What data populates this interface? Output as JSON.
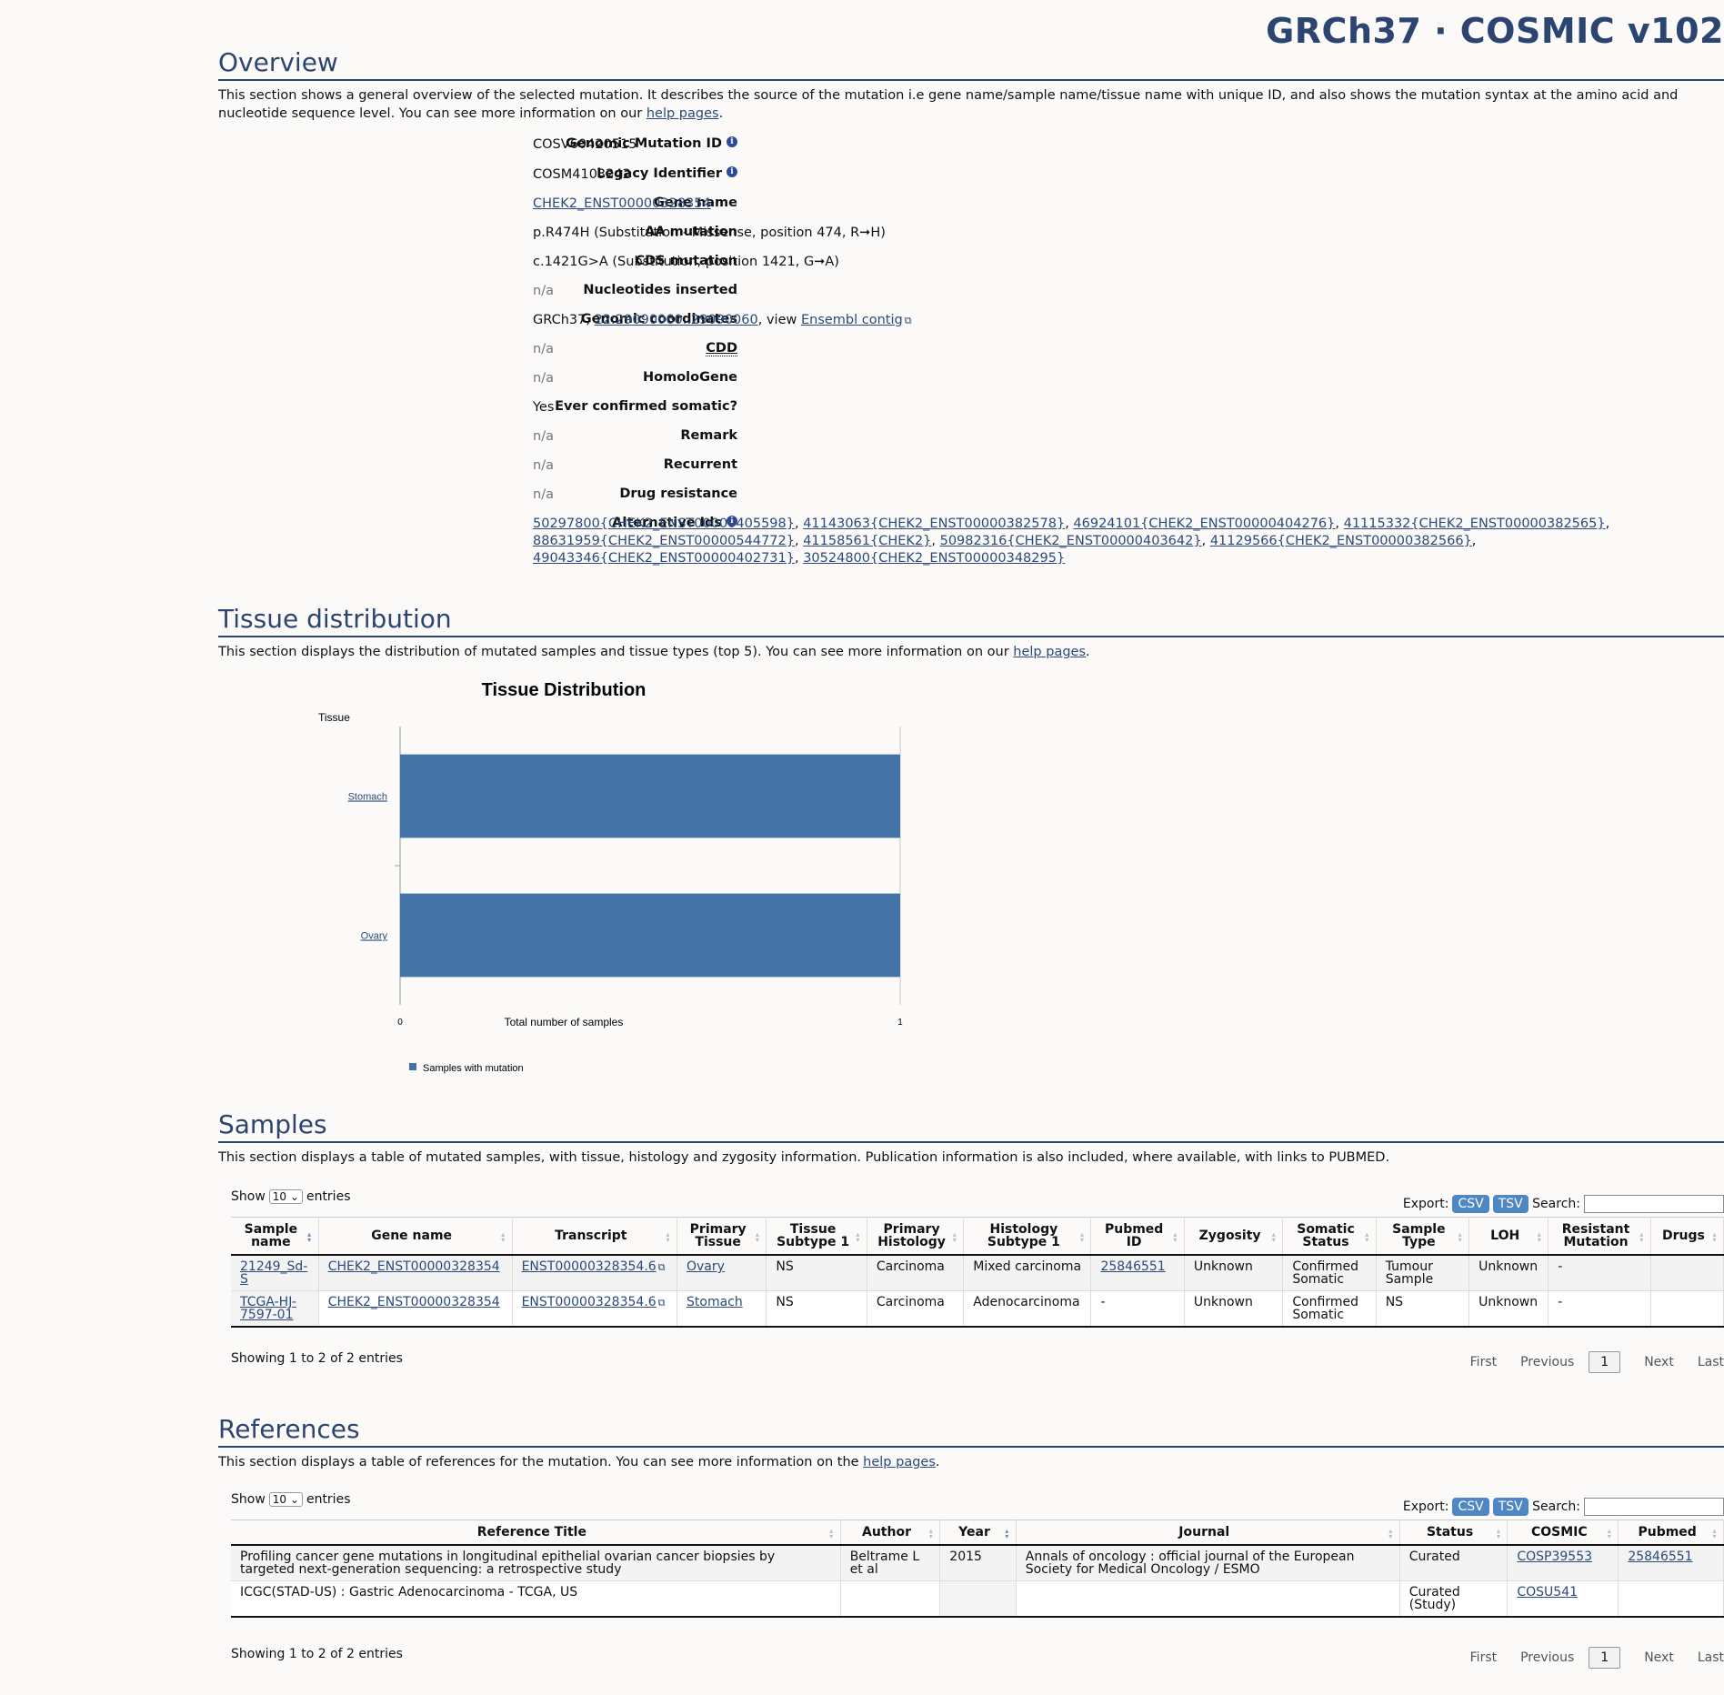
{
  "brand": "GRCh37 · COSMIC v102",
  "overview": {
    "title": "Overview",
    "desc_pre": "This section shows a general overview of the selected mutation. It describes the source of the mutation i.e gene name/sample name/tissue name with unique ID, and also shows the mutation syntax at the amino acid and nucleotide sequence level. You can see more information on our ",
    "desc_link": "help pages",
    "desc_post": ".",
    "fields": {
      "gmid": {
        "label": "Genomic Mutation ID",
        "value": "COSV60420515"
      },
      "legacy": {
        "label": "Legacy Identifier",
        "value": "COSM4103242"
      },
      "gene": {
        "label": "Gene name",
        "value": "CHEK2_ENST00000328354"
      },
      "aa": {
        "label": "AA mutation",
        "value": "p.R474H (Substitution - Missense, position 474, R➞H)"
      },
      "cds": {
        "label": "CDS mutation",
        "value": "c.1421G>A (Substitution, position 1421, G➞A)"
      },
      "nuc": {
        "label": "Nucleotides inserted",
        "value": "n/a"
      },
      "coords": {
        "label": "Genomic coordinates",
        "prefix": "GRCh37, ",
        "link": "22:29090060..29090060",
        "mid": ", view ",
        "link2": "Ensembl contig"
      },
      "cdd": {
        "label": "CDD",
        "value": "n/a"
      },
      "homolo": {
        "label": "HomoloGene",
        "value": "n/a"
      },
      "confirmed": {
        "label": "Ever confirmed somatic?",
        "value": "Yes"
      },
      "remark": {
        "label": "Remark",
        "value": "n/a"
      },
      "recurrent": {
        "label": "Recurrent",
        "value": "n/a"
      },
      "drug": {
        "label": "Drug resistance",
        "value": "n/a"
      },
      "alt": {
        "label": "Alternative Ids",
        "ids": [
          "50297800{CHEK2_ENST00000405598}",
          "41143063{CHEK2_ENST00000382578}",
          "46924101{CHEK2_ENST00000404276}",
          "41115332{CHEK2_ENST00000382565}",
          "88631959{CHEK2_ENST00000544772}",
          "41158561{CHEK2}",
          "50982316{CHEK2_ENST00000403642}",
          "41129566{CHEK2_ENST00000382566}",
          "49043346{CHEK2_ENST00000402731}",
          "30524800{CHEK2_ENST00000348295}"
        ]
      }
    }
  },
  "tissue": {
    "title": "Tissue distribution",
    "desc_pre": "This section displays the distribution of mutated samples and tissue types (top 5). You can see more information on our ",
    "desc_link": "help pages",
    "desc_post": "."
  },
  "chart_data": {
    "type": "bar",
    "orientation": "horizontal",
    "title": "Tissue Distribution",
    "ylabel": "Tissue",
    "xlabel": "Total number of samples",
    "categories": [
      "Stomach",
      "Ovary"
    ],
    "series": [
      {
        "name": "Samples with mutation",
        "values": [
          1,
          1
        ],
        "color": "#4673a7"
      }
    ],
    "xlim": [
      0,
      1
    ],
    "xticks": [
      "0",
      "1"
    ],
    "legend": "bottom-left"
  },
  "samples": {
    "title": "Samples",
    "desc": "This section displays a table of mutated samples, with tissue, histology and zygosity information. Publication information is also included, where available, with links to PUBMED.",
    "show": "Show",
    "entries": "entries",
    "page_len": "10",
    "export": "Export:",
    "csv": "CSV",
    "tsv": "TSV",
    "search": "Search:",
    "columns": [
      "Sample name",
      "Gene name",
      "Transcript",
      "Primary Tissue",
      "Tissue Subtype 1",
      "Primary Histology",
      "Histology Subtype 1",
      "Pubmed ID",
      "Zygosity",
      "Somatic Status",
      "Sample Type",
      "LOH",
      "Resistant Mutation",
      "Drugs"
    ],
    "rows": [
      [
        "21249_Sd-S",
        "CHEK2_ENST00000328354",
        "ENST00000328354.6",
        "Ovary",
        "NS",
        "Carcinoma",
        "Mixed carcinoma",
        "25846551",
        "Unknown",
        "Confirmed Somatic",
        "Tumour Sample",
        "Unknown",
        "-",
        ""
      ],
      [
        "TCGA-HJ-7597-01",
        "CHEK2_ENST00000328354",
        "ENST00000328354.6",
        "Stomach",
        "NS",
        "Carcinoma",
        "Adenocarcinoma",
        "-",
        "Unknown",
        "Confirmed Somatic",
        "NS",
        "Unknown",
        "-",
        ""
      ]
    ],
    "info": "Showing 1 to 2 of 2 entries",
    "pager": {
      "first": "First",
      "prev": "Previous",
      "page": "1",
      "next": "Next",
      "last": "Last"
    }
  },
  "references": {
    "title": "References",
    "desc_pre": "This section displays a table of references for the mutation. You can see more information on the ",
    "desc_link": "help pages",
    "desc_post": ".",
    "show": "Show",
    "entries": "entries",
    "page_len": "10",
    "export": "Export:",
    "csv": "CSV",
    "tsv": "TSV",
    "search": "Search:",
    "columns": [
      "Reference Title",
      "Author",
      "Year",
      "Journal",
      "Status",
      "COSMIC",
      "Pubmed"
    ],
    "rows": [
      [
        "Profiling cancer gene mutations in longitudinal epithelial ovarian cancer biopsies by targeted next-generation sequencing: a retrospective study",
        "Beltrame L et al",
        "2015",
        "Annals of oncology : official journal of the European Society for Medical Oncology / ESMO",
        "Curated",
        "COSP39553",
        "25846551"
      ],
      [
        "ICGC(STAD-US) : Gastric Adenocarcinoma - TCGA, US",
        "",
        "",
        "",
        "Curated (Study)",
        "COSU541",
        ""
      ]
    ],
    "info": "Showing 1 to 2 of 2 entries",
    "pager": {
      "first": "First",
      "prev": "Previous",
      "page": "1",
      "next": "Next",
      "last": "Last"
    }
  }
}
